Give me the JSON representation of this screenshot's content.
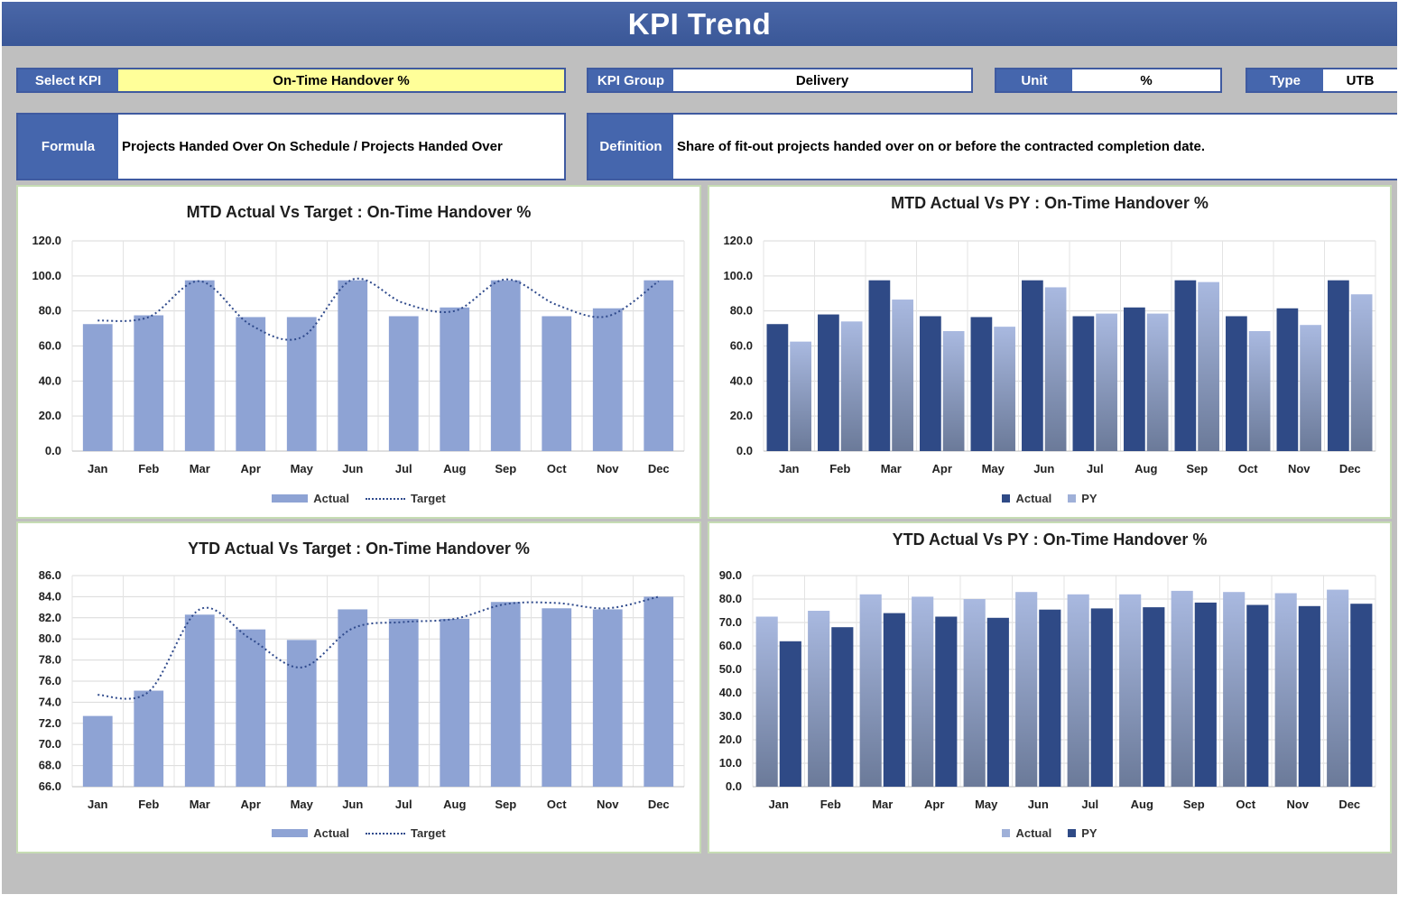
{
  "header": {
    "title": "KPI Trend"
  },
  "fields": {
    "select_kpi": {
      "label": "Select KPI",
      "value": "On-Time Handover %"
    },
    "kpi_group": {
      "label": "KPI Group",
      "value": "Delivery"
    },
    "unit": {
      "label": "Unit",
      "value": "%"
    },
    "type": {
      "label": "Type",
      "value": "UTB"
    },
    "formula": {
      "label": "Formula",
      "value": "Projects Handed Over On Schedule / Projects Handed Over"
    },
    "definition": {
      "label": "Definition",
      "value": "Share of fit-out projects handed over on or before the contracted completion date."
    }
  },
  "colors": {
    "banner": "#3f5ca0",
    "label_bg": "#4566ad",
    "select_bg": "#ffff99",
    "bar_light": "#8ea3d4",
    "bar_dark": "#2f4a86",
    "target_line": "#2f4a8c"
  },
  "chart_data": [
    {
      "id": "mtd_target",
      "type": "bar",
      "title": "MTD Actual Vs Target : On-Time Handover %",
      "categories": [
        "Jan",
        "Feb",
        "Mar",
        "Apr",
        "May",
        "Jun",
        "Jul",
        "Aug",
        "Sep",
        "Oct",
        "Nov",
        "Dec"
      ],
      "series": [
        {
          "name": "Actual",
          "kind": "bar",
          "values": [
            72.5,
            77.5,
            97.5,
            76.5,
            76.5,
            97.5,
            77,
            82,
            97.5,
            77,
            81.5,
            97.5
          ]
        },
        {
          "name": "Target",
          "kind": "line",
          "values": [
            74.5,
            76.5,
            97,
            72,
            65,
            98,
            84.5,
            80,
            98,
            83.5,
            77,
            97
          ]
        }
      ],
      "ylim": [
        0,
        120
      ],
      "yticks": [
        0,
        20,
        40,
        60,
        80,
        100,
        120
      ],
      "tick_format": 1,
      "grid": true,
      "legend": "bottom"
    },
    {
      "id": "mtd_py",
      "type": "bar",
      "title": "MTD Actual Vs PY : On-Time Handover %",
      "categories": [
        "Jan",
        "Feb",
        "Mar",
        "Apr",
        "May",
        "Jun",
        "Jul",
        "Aug",
        "Sep",
        "Oct",
        "Nov",
        "Dec"
      ],
      "series": [
        {
          "name": "Actual",
          "kind": "bar",
          "values": [
            72.5,
            78,
            97.5,
            77,
            76.5,
            97.5,
            77,
            82,
            97.5,
            77,
            81.5,
            97.5
          ]
        },
        {
          "name": "PY",
          "kind": "bar",
          "values": [
            62.5,
            74,
            86.5,
            68.5,
            71,
            93.5,
            78.5,
            78.5,
            96.5,
            68.5,
            72,
            89.5
          ]
        }
      ],
      "ylim": [
        0,
        120
      ],
      "yticks": [
        0,
        20,
        40,
        60,
        80,
        100,
        120
      ],
      "tick_format": 1,
      "grid": true,
      "legend": "bottom"
    },
    {
      "id": "ytd_target",
      "type": "bar",
      "title": "YTD Actual Vs Target : On-Time Handover %",
      "categories": [
        "Jan",
        "Feb",
        "Mar",
        "Apr",
        "May",
        "Jun",
        "Jul",
        "Aug",
        "Sep",
        "Oct",
        "Nov",
        "Dec"
      ],
      "series": [
        {
          "name": "Actual",
          "kind": "bar",
          "values": [
            72.7,
            75.1,
            82.3,
            80.9,
            79.9,
            82.8,
            81.9,
            81.9,
            83.5,
            82.9,
            82.8,
            84.0
          ]
        },
        {
          "name": "Target",
          "kind": "line",
          "values": [
            74.7,
            75.0,
            82.8,
            80.0,
            77.3,
            81.0,
            81.6,
            81.9,
            83.3,
            83.4,
            82.9,
            84.0
          ]
        }
      ],
      "ylim": [
        66,
        86
      ],
      "yticks": [
        66,
        68,
        70,
        72,
        74,
        76,
        78,
        80,
        82,
        84,
        86
      ],
      "tick_format": 1,
      "grid": true,
      "legend": "bottom"
    },
    {
      "id": "ytd_py",
      "type": "bar",
      "title": "YTD Actual Vs PY : On-Time Handover %",
      "categories": [
        "Jan",
        "Feb",
        "Mar",
        "Apr",
        "May",
        "Jun",
        "Jul",
        "Aug",
        "Sep",
        "Oct",
        "Nov",
        "Dec"
      ],
      "series": [
        {
          "name": "Actual",
          "kind": "bar",
          "values": [
            72.5,
            75,
            82,
            81,
            80,
            83,
            82,
            82,
            83.5,
            83,
            82.5,
            84
          ]
        },
        {
          "name": "PY",
          "kind": "bar",
          "values": [
            62,
            68,
            74,
            72.5,
            72,
            75.5,
            76,
            76.5,
            78.5,
            77.5,
            77,
            78
          ]
        }
      ],
      "ylim": [
        0,
        90
      ],
      "yticks": [
        0,
        10,
        20,
        30,
        40,
        50,
        60,
        70,
        80,
        90
      ],
      "tick_format": 1,
      "grid": true,
      "legend": "bottom"
    }
  ]
}
